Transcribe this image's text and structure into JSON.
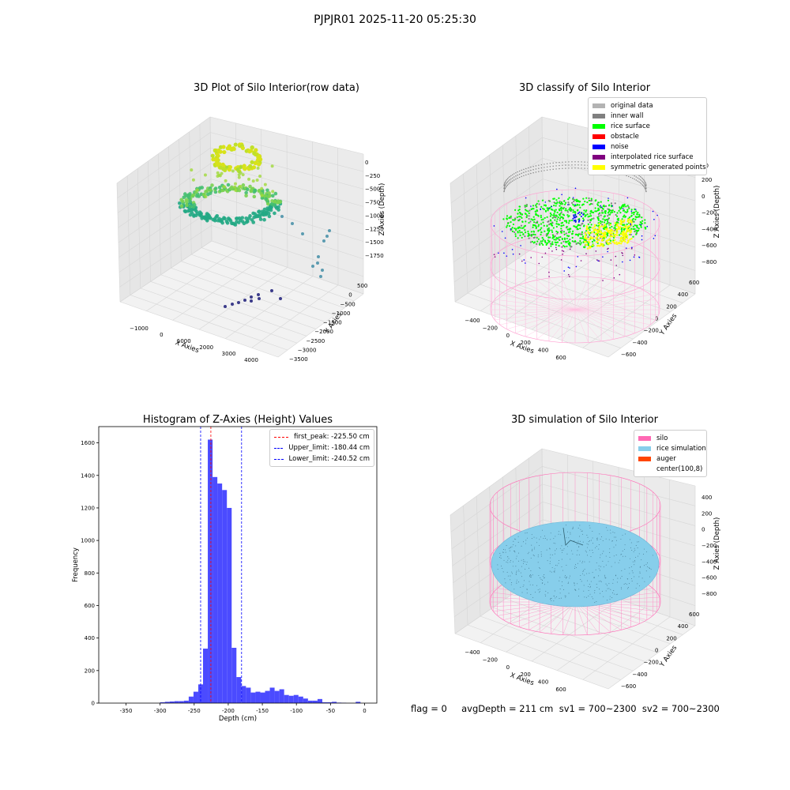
{
  "suptitle": "PJPJR01 2025-11-20 05:25:30",
  "footer": "flag = 0     avgDepth = 211 cm  sv1 = 700~2300  sv2 = 700~2300",
  "colors": {
    "original_data": "#b3b3b3",
    "inner_wall": "#808080",
    "rice_surface": "#00ff00",
    "obstacle": "#ff0000",
    "noise": "#0000ff",
    "interpolated": "#800080",
    "symmetric": "#ffff00",
    "silo": "#ff69b4",
    "rice_sim": "#87ceeb",
    "auger": "#ff4500",
    "hist_bar": "#4b4bff"
  },
  "panel1": {
    "title": "3D Plot of Silo Interior(row data)",
    "xlabel": "X Axies",
    "ylabel": "Y Axies",
    "zlabel": "Z Axies (Depth)",
    "xticks": [
      "−1000",
      "0",
      "1000",
      "2000",
      "3000",
      "4000"
    ],
    "yticks": [
      "500",
      "0",
      "−500",
      "−1000",
      "−1500",
      "−2000",
      "−2500",
      "−3000",
      "−3500"
    ],
    "zticks": [
      "0",
      "−250",
      "−500",
      "−750",
      "−1000",
      "−1250",
      "−1500",
      "−1750"
    ]
  },
  "panel2": {
    "title": "3D classify of Silo Interior",
    "xlabel": "X Axies",
    "ylabel": "Y Axies",
    "zlabel": "Z Axies (Depth)",
    "xticks": [
      "−400",
      "−200",
      "0",
      "200",
      "400",
      "600"
    ],
    "yticks": [
      "600",
      "400",
      "200",
      "0",
      "−200",
      "−400",
      "−600"
    ],
    "zticks": [
      "200",
      "0",
      "−200",
      "−400",
      "−600",
      "−800"
    ],
    "ztick_top_partial": "00",
    "legend": [
      {
        "label": "original data",
        "color_key": "original_data"
      },
      {
        "label": "inner wall",
        "color_key": "inner_wall"
      },
      {
        "label": "rice surface",
        "color_key": "rice_surface"
      },
      {
        "label": "obstacle",
        "color_key": "obstacle"
      },
      {
        "label": "noise",
        "color_key": "noise"
      },
      {
        "label": "interpolated rice surface",
        "color_key": "interpolated"
      },
      {
        "label": "symmetric generated points",
        "color_key": "symmetric"
      }
    ]
  },
  "panel4": {
    "title": "3D simulation of Silo Interior",
    "xlabel": "X Axies",
    "ylabel": "Y Axies",
    "zlabel": "Z Axies (Depth)",
    "xticks": [
      "−400",
      "−200",
      "0",
      "200",
      "400",
      "600"
    ],
    "yticks": [
      "600",
      "400",
      "200",
      "0",
      "−200",
      "−400",
      "−600"
    ],
    "zticks": [
      "400",
      "200",
      "0",
      "−200",
      "−400",
      "−600",
      "−800"
    ],
    "legend": [
      {
        "label": "silo",
        "color_key": "silo"
      },
      {
        "label": "rice simulation",
        "color_key": "rice_sim"
      },
      {
        "label": "auger",
        "color_key": "auger"
      },
      {
        "label": "center(100,8)",
        "color_key": "none"
      }
    ]
  },
  "chart_data": {
    "type": "bar",
    "title": "Histogram of Z-Axies (Height) Values",
    "xlabel": "Depth (cm)",
    "ylabel": "Frequency",
    "xlim": [
      -390,
      18
    ],
    "ylim": [
      0,
      1700
    ],
    "xticks": [
      -350,
      -300,
      -250,
      -200,
      -150,
      -100,
      -50,
      0
    ],
    "yticks": [
      0,
      200,
      400,
      600,
      800,
      1000,
      1200,
      1400,
      1600
    ],
    "bin_width": 7,
    "bins": [
      {
        "x": -300,
        "v": 5
      },
      {
        "x": -293,
        "v": 8
      },
      {
        "x": -286,
        "v": 10
      },
      {
        "x": -279,
        "v": 12
      },
      {
        "x": -272,
        "v": 12
      },
      {
        "x": -265,
        "v": 15
      },
      {
        "x": -258,
        "v": 40
      },
      {
        "x": -251,
        "v": 70
      },
      {
        "x": -244,
        "v": 115
      },
      {
        "x": -237,
        "v": 335
      },
      {
        "x": -230,
        "v": 1620
      },
      {
        "x": -223,
        "v": 1390
      },
      {
        "x": -216,
        "v": 1350
      },
      {
        "x": -209,
        "v": 1310
      },
      {
        "x": -202,
        "v": 1200
      },
      {
        "x": -195,
        "v": 340
      },
      {
        "x": -188,
        "v": 160
      },
      {
        "x": -181,
        "v": 105
      },
      {
        "x": -174,
        "v": 95
      },
      {
        "x": -167,
        "v": 65
      },
      {
        "x": -160,
        "v": 70
      },
      {
        "x": -153,
        "v": 65
      },
      {
        "x": -146,
        "v": 75
      },
      {
        "x": -139,
        "v": 95
      },
      {
        "x": -132,
        "v": 75
      },
      {
        "x": -125,
        "v": 85
      },
      {
        "x": -118,
        "v": 50
      },
      {
        "x": -111,
        "v": 45
      },
      {
        "x": -104,
        "v": 50
      },
      {
        "x": -97,
        "v": 40
      },
      {
        "x": -90,
        "v": 28
      },
      {
        "x": -83,
        "v": 15
      },
      {
        "x": -76,
        "v": 15
      },
      {
        "x": -69,
        "v": 25
      },
      {
        "x": -62,
        "v": 5
      },
      {
        "x": -55,
        "v": 5
      },
      {
        "x": -48,
        "v": 8
      },
      {
        "x": -41,
        "v": 3
      },
      {
        "x": -34,
        "v": 2
      },
      {
        "x": -13,
        "v": 8
      }
    ],
    "vlines": [
      {
        "name": "first_peak: -225.50 cm",
        "x": -225.5,
        "color": "#ff0000"
      },
      {
        "name": "Upper_limit: -180.44 cm",
        "x": -180.44,
        "color": "#0000ff"
      },
      {
        "name": "Lower_limit: -240.52 cm",
        "x": -240.52,
        "color": "#0000ff"
      }
    ],
    "legend_position": "top-right"
  }
}
